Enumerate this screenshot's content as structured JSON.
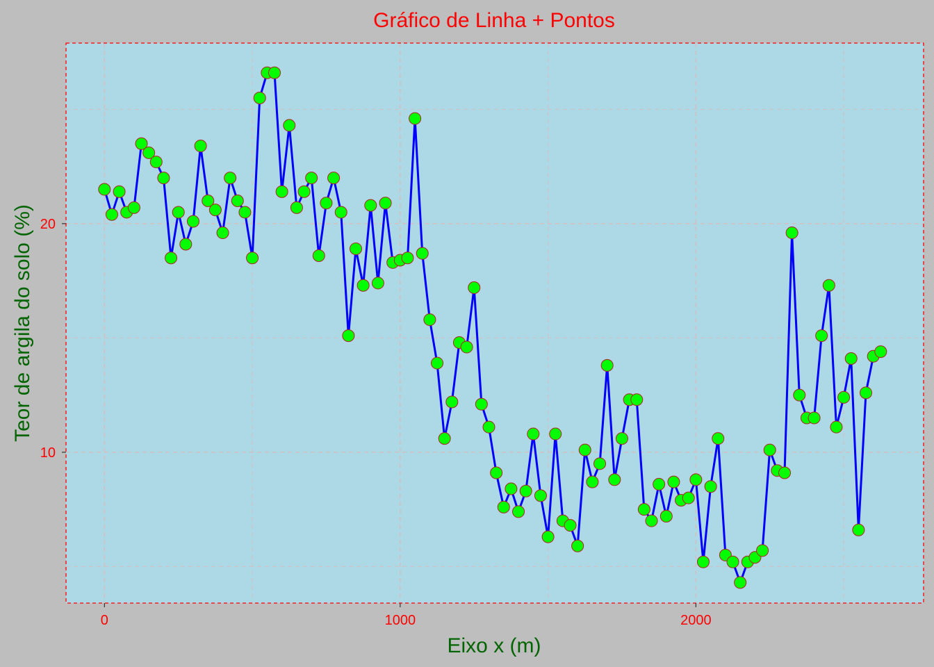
{
  "chart_data": {
    "type": "line",
    "title": "Gráfico de Linha + Pontos",
    "xlabel": "Eixo x (m)",
    "ylabel": "Teor de argila do solo (%)",
    "xlim": [
      -130,
      2770
    ],
    "ylim": [
      3.4,
      27.9
    ],
    "x_ticks": [
      0,
      1000,
      2000
    ],
    "x_minor_ticks": [
      500,
      1500,
      2500
    ],
    "y_ticks": [
      10,
      20
    ],
    "y_minor_ticks": [
      5,
      15,
      25
    ],
    "grid": true,
    "colors": {
      "background": "#bebebe",
      "panel": "#add8e6",
      "panel_border": "#ff0000",
      "grid": "#d3c0c0",
      "line": "#0000ff",
      "point_fill": "#00ff00",
      "point_stroke": "#b22222",
      "title": "#ff0000",
      "axis_title": "#006400",
      "tick_label": "#ff0000"
    },
    "series": [
      {
        "x": [
          0,
          25,
          50,
          75,
          100,
          125,
          150,
          175,
          200,
          225,
          250,
          275,
          300,
          325,
          350,
          375,
          400,
          425,
          450,
          475,
          500,
          525,
          550,
          575,
          600,
          625,
          650,
          675,
          700,
          725,
          750,
          775,
          800,
          825,
          850,
          875,
          900,
          925,
          950,
          975,
          1000,
          1025,
          1050,
          1075,
          1100,
          1125,
          1150,
          1175,
          1200,
          1225,
          1250,
          1275,
          1300,
          1325,
          1350,
          1375,
          1400,
          1425,
          1450,
          1475,
          1500,
          1525,
          1550,
          1575,
          1600,
          1625,
          1650,
          1675,
          1700,
          1725,
          1750,
          1775,
          1800,
          1825,
          1850,
          1875,
          1900,
          1925,
          1950,
          1975,
          2000,
          2025,
          2050,
          2075,
          2100,
          2125,
          2150,
          2175,
          2200,
          2225,
          2250,
          2275,
          2300,
          2325,
          2350,
          2375,
          2400,
          2425,
          2450,
          2475,
          2500,
          2525,
          2550,
          2575,
          2600,
          2625
        ],
        "y": [
          21.5,
          20.4,
          21.4,
          20.5,
          20.7,
          23.5,
          23.1,
          22.7,
          22.0,
          18.5,
          20.5,
          19.1,
          20.1,
          23.4,
          21.0,
          20.6,
          19.6,
          22.0,
          21.0,
          20.5,
          18.5,
          25.5,
          26.6,
          26.6,
          21.4,
          24.3,
          20.7,
          21.4,
          22.0,
          18.6,
          20.9,
          22.0,
          20.5,
          15.1,
          18.9,
          17.3,
          20.8,
          17.4,
          20.9,
          18.3,
          18.4,
          18.5,
          24.6,
          18.7,
          15.8,
          13.9,
          10.6,
          12.2,
          14.8,
          14.6,
          17.2,
          12.1,
          11.1,
          9.1,
          7.6,
          8.4,
          7.4,
          8.3,
          10.8,
          8.1,
          6.3,
          10.8,
          7.0,
          6.8,
          5.9,
          10.1,
          8.7,
          9.5,
          13.8,
          8.8,
          10.6,
          12.3,
          12.3,
          7.5,
          7.0,
          8.6,
          7.2,
          8.7,
          7.9,
          8.0,
          8.8,
          5.2,
          8.5,
          10.6,
          5.5,
          5.2,
          4.3,
          5.2,
          5.4,
          5.7,
          10.1,
          9.2,
          9.1,
          19.6,
          12.5,
          11.5,
          11.5,
          15.1,
          17.3,
          11.1,
          12.4,
          14.1,
          6.6,
          12.6,
          14.2,
          14.4
        ]
      }
    ]
  }
}
